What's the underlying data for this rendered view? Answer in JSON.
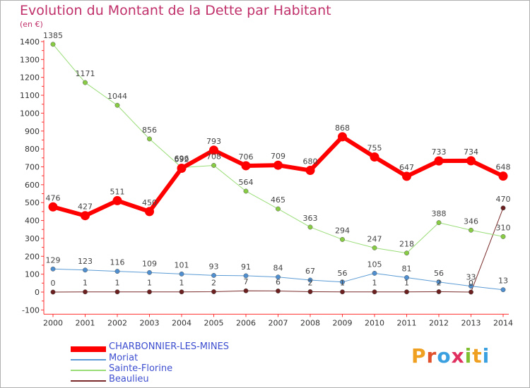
{
  "title": "Evolution du Montant de la Dette par Habitant",
  "subtitle": "(en €)",
  "logo": "Proxiti",
  "chart_data": {
    "type": "line",
    "x": [
      "2000",
      "2001",
      "2002",
      "2003",
      "2004",
      "2005",
      "2006",
      "2007",
      "2008",
      "2009",
      "2010",
      "2011",
      "2012",
      "2013",
      "2014"
    ],
    "ylim": [
      -100,
      1400
    ],
    "yticks": [
      "-100",
      "0",
      "100",
      "200",
      "300",
      "400",
      "500",
      "600",
      "700",
      "800",
      "900",
      "1000",
      "1100",
      "1200",
      "1300",
      "1400"
    ],
    "grid": false,
    "legend_position": "bottom-left",
    "series": [
      {
        "name": "CHARBONNIER-LES-MINES",
        "color": "#ff0000",
        "marker_color": "#ff0000",
        "width": 6,
        "values": [
          476,
          427,
          511,
          450,
          692,
          793,
          706,
          709,
          680,
          868,
          755,
          647,
          733,
          734,
          648
        ],
        "labels": [
          "476",
          "427",
          "511",
          "450",
          "692",
          "793",
          "706",
          "709",
          "680",
          "868",
          "755",
          "647",
          "733",
          "734",
          "648"
        ]
      },
      {
        "name": "Moriat",
        "color": "#5b9bd5",
        "marker_color": "#4f8fd0",
        "width": 1,
        "values": [
          129,
          123,
          116,
          109,
          101,
          93,
          91,
          84,
          67,
          56,
          105,
          81,
          56,
          33,
          13
        ],
        "labels": [
          "129",
          "123",
          "116",
          "109",
          "101",
          "93",
          "91",
          "84",
          "67",
          "56",
          "105",
          "81",
          "56",
          "33",
          "13"
        ]
      },
      {
        "name": "Sainte-Florine",
        "color": "#99dd77",
        "marker_color": "#88cc44",
        "width": 1,
        "values": [
          1385,
          1171,
          1044,
          856,
          696,
          708,
          564,
          465,
          363,
          294,
          247,
          218,
          388,
          346,
          310
        ],
        "labels": [
          "1385",
          "1171",
          "1044",
          "856",
          "696",
          "708",
          "564",
          "465",
          "363",
          "294",
          "247",
          "218",
          "388",
          "346",
          "310"
        ]
      },
      {
        "name": "Beaulieu",
        "color": "#7a2a2a",
        "marker_color": "#6b1f1f",
        "width": 1,
        "values": [
          0,
          1,
          1,
          1,
          1,
          2,
          7,
          6,
          2,
          1,
          1,
          1,
          2,
          0,
          470
        ],
        "labels": [
          "0",
          "1",
          "1",
          "1",
          "1",
          "2",
          "7",
          "6",
          "2",
          "1",
          "1",
          "1",
          "2",
          "0",
          "470"
        ]
      }
    ]
  }
}
